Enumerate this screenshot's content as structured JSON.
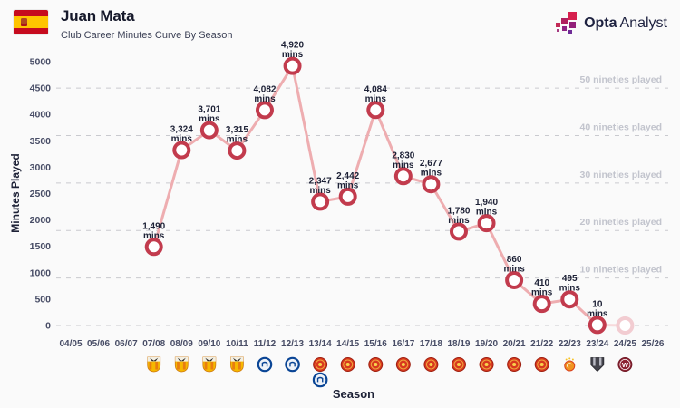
{
  "header": {
    "title": "Juan Mata",
    "subtitle": "Club Career Minutes Curve By Season",
    "flag": "spain-flag",
    "brand_bold": "Opta",
    "brand_light": "Analyst"
  },
  "chart_data": {
    "type": "line",
    "title": "Club Career Minutes Curve By Season",
    "xlabel": "Season",
    "ylabel": "Minutes Played",
    "ylim": [
      0,
      5000
    ],
    "y_tick_step": 500,
    "grid": "horizontal dashed lines at each nineties threshold and at zero",
    "legend": "none",
    "mins_suffix": "mins",
    "seasons": [
      {
        "label": "04/05",
        "minutes": null
      },
      {
        "label": "05/06",
        "minutes": null
      },
      {
        "label": "06/07",
        "minutes": null
      },
      {
        "label": "07/08",
        "minutes": 1490,
        "mins_label": "1,490",
        "club": "valencia"
      },
      {
        "label": "08/09",
        "minutes": 3324,
        "mins_label": "3,324",
        "club": "valencia"
      },
      {
        "label": "09/10",
        "minutes": 3701,
        "mins_label": "3,701",
        "club": "valencia"
      },
      {
        "label": "10/11",
        "minutes": 3315,
        "mins_label": "3,315",
        "club": "valencia"
      },
      {
        "label": "11/12",
        "minutes": 4082,
        "mins_label": "4,082",
        "club": "chelsea"
      },
      {
        "label": "12/13",
        "minutes": 4920,
        "mins_label": "4,920",
        "club": "chelsea"
      },
      {
        "label": "13/14",
        "minutes": 2347,
        "mins_label": "2,347",
        "club": "manchester-united",
        "club2": "chelsea"
      },
      {
        "label": "14/15",
        "minutes": 2442,
        "mins_label": "2,442",
        "club": "manchester-united"
      },
      {
        "label": "15/16",
        "minutes": 4084,
        "mins_label": "4,084",
        "club": "manchester-united"
      },
      {
        "label": "16/17",
        "minutes": 2830,
        "mins_label": "2,830",
        "club": "manchester-united"
      },
      {
        "label": "17/18",
        "minutes": 2677,
        "mins_label": "2,677",
        "club": "manchester-united"
      },
      {
        "label": "18/19",
        "minutes": 1780,
        "mins_label": "1,780",
        "club": "manchester-united"
      },
      {
        "label": "19/20",
        "minutes": 1940,
        "mins_label": "1,940",
        "club": "manchester-united"
      },
      {
        "label": "20/21",
        "minutes": 860,
        "mins_label": "860",
        "club": "manchester-united"
      },
      {
        "label": "21/22",
        "minutes": 410,
        "mins_label": "410",
        "club": "manchester-united"
      },
      {
        "label": "22/23",
        "minutes": 495,
        "mins_label": "495",
        "club": "galatasaray"
      },
      {
        "label": "23/24",
        "minutes": 10,
        "mins_label": "10",
        "club": "vissel-kobe"
      },
      {
        "label": "24/25",
        "minutes": 0,
        "mins_label": null,
        "club": "western-sydney-wanderers",
        "faded": true
      },
      {
        "label": "25/26",
        "minutes": null
      }
    ],
    "nineties_gridlines": [
      {
        "minutes": 4500,
        "label": "50 nineties played"
      },
      {
        "minutes": 3600,
        "label": "40 nineties played"
      },
      {
        "minutes": 2700,
        "label": "30 nineties played"
      },
      {
        "minutes": 1800,
        "label": "20 nineties played"
      },
      {
        "minutes": 900,
        "label": "10 nineties played"
      },
      {
        "minutes": 0,
        "label": ""
      }
    ]
  },
  "colors": {
    "background": "#fafafa",
    "line": "#eeadb0",
    "line_faded": "#f7dadc",
    "marker_stroke": "#c23b4d",
    "marker_stroke_faded": "#f2ccd1",
    "marker_fill": "#ffffff",
    "point_label": "#1d2136",
    "axis_text": "#484d66",
    "axis_title": "#1d2136",
    "gridline": "#c9cacf",
    "nineties_label": "#c2c4cd",
    "title": "#16192b",
    "subtitle": "#3d4257",
    "brand_text": "#1e2240",
    "flag_red": "#c60b1e",
    "flag_yellow": "#ffc400"
  }
}
